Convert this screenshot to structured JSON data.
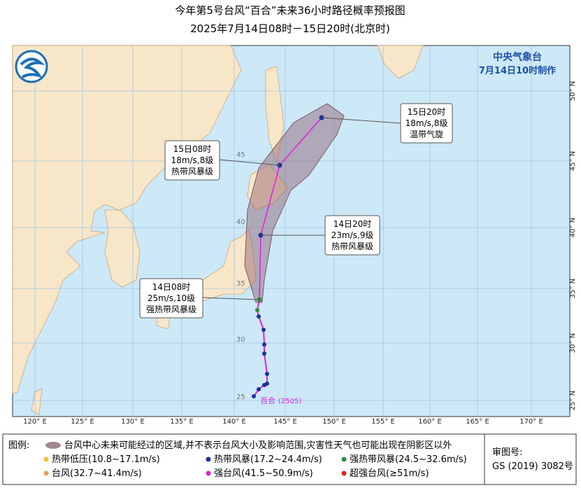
{
  "header": {
    "title": "今年第5号台风“百合”未来36小时路径概率预报图",
    "subtitle": "2025年7月14日08时－15日20时(北京时)"
  },
  "agency": {
    "name": "中央气象台",
    "issued": "7月14日10时制作"
  },
  "map": {
    "longitude_labels": [
      "120° E",
      "125° E",
      "130° E",
      "135° E",
      "140° E",
      "145° E",
      "150° E",
      "155° E",
      "160° E",
      "165° E",
      "170° E"
    ],
    "latitude_labels": [
      "25° N",
      "30° N",
      "35° N",
      "40° N",
      "45° N",
      "50° N"
    ],
    "inner_latitude_labels": [
      "25",
      "30",
      "35",
      "40",
      "45"
    ]
  },
  "typhoon": {
    "name": "百合",
    "code": "(2505)"
  },
  "forecasts": [
    {
      "time": "14日08时",
      "wind": "25m/s,10级",
      "category": "强热带风暴级"
    },
    {
      "time": "14日20时",
      "wind": "23m/s,9级",
      "category": "热带风暴级"
    },
    {
      "time": "15日08时",
      "wind": "18m/s,8级",
      "category": "热带风暴级"
    },
    {
      "time": "15日20时",
      "wind": "18m/s,8级",
      "category": "温带气旋"
    }
  ],
  "legend": {
    "title": "图例:",
    "cone": "台风中心未来可能经过的区域,并不表示台风大小及影响范围,灾害性天气也可能出现在阴影区以外",
    "items": [
      {
        "name": "热带低压",
        "range": "(10.8~17.1m/s)",
        "color": "#f2c230"
      },
      {
        "name": "热带风暴",
        "range": "(17.2~24.4m/s)",
        "color": "#1f2f9e"
      },
      {
        "name": "强热带风暴",
        "range": "(24.5~32.6m/s)",
        "color": "#2e8b3a"
      },
      {
        "name": "台风",
        "range": "(32.7~41.4m/s)",
        "color": "#f0a050"
      },
      {
        "name": "强台风",
        "range": "(41.5~50.9m/s)",
        "color": "#e020e0"
      },
      {
        "name": "超强台风",
        "range": "(≥51m/s)",
        "color": "#e02020"
      }
    ]
  },
  "approval": {
    "label": "审图号:",
    "number": "GS (2019) 3082号"
  }
}
